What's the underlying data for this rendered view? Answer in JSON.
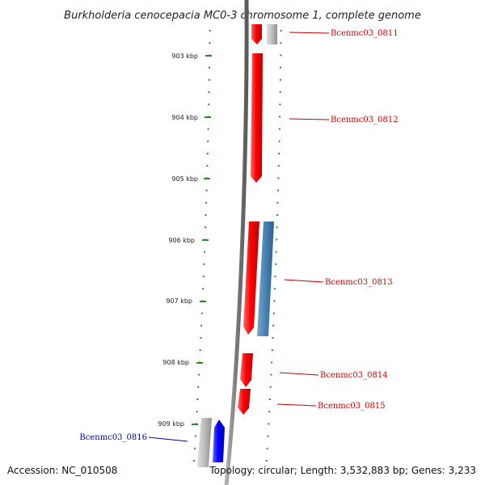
{
  "title": "Burkholderia cenocepacia MC0-3 chromosome 1, complete genome",
  "accession": "Accession: NC_010508",
  "topology": "Topology: circular; Length: 3,532,883 bp; Genes: 3,233",
  "kbp_labels": [
    "903 kbp",
    "904 kbp",
    "905 kbp",
    "906 kbp",
    "907 kbp",
    "908 kbp",
    "909 kbp"
  ],
  "genes": [
    {
      "id": "g0811",
      "label": "Bcenmc03_0811",
      "strand": "forward",
      "color": "#cc0000"
    },
    {
      "id": "g0812",
      "label": "Bcenmc03_0812",
      "strand": "forward",
      "color": "#cc0000"
    },
    {
      "id": "g0813",
      "label": "Bcenmc03_0813",
      "strand": "forward",
      "color": "#cc0000"
    },
    {
      "id": "g0814",
      "label": "Bcenmc03_0814",
      "strand": "forward",
      "color": "#cc0000"
    },
    {
      "id": "g0815",
      "label": "Bcenmc03_0815",
      "strand": "forward",
      "color": "#cc0000"
    },
    {
      "id": "g0816",
      "label": "Bcenmc03_0816",
      "strand": "reverse",
      "color": "#0000aa"
    }
  ],
  "colors": {
    "forward_gene": "#ff0000",
    "reverse_gene": "#0000ff",
    "steelblue_feature": "#4682b4",
    "grey_feature": "#b8b8b8",
    "backbone": "#888888",
    "tick": "#2e8b2e"
  }
}
